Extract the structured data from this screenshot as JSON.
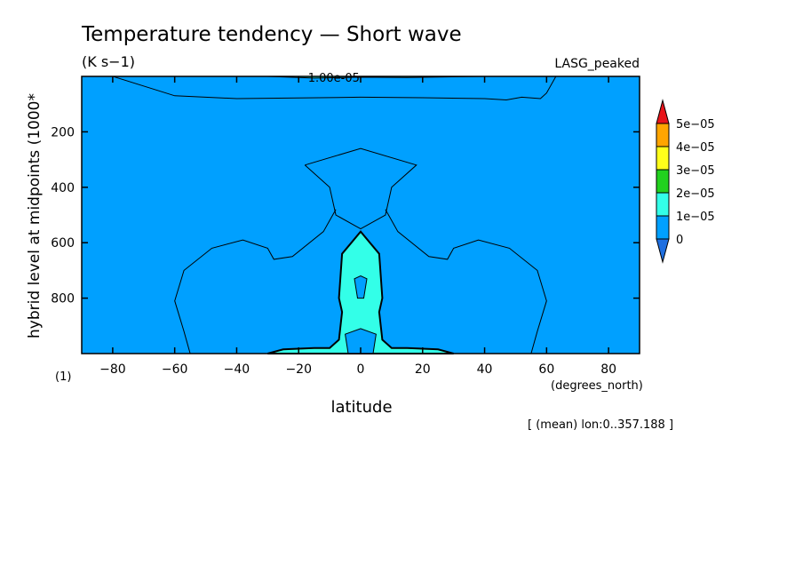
{
  "chart_data": {
    "type": "contour",
    "title": "Temperature tendency — Short wave",
    "units": "(K s−1)",
    "dataset": "LASG_peaked",
    "xlabel": "latitude",
    "xunits": "(degrees_north)",
    "ylabel": "hybrid level at midpoints (1000*",
    "yscale_note": "(1)",
    "footnote": "[ (mean) lon:0..357.188 ]",
    "xlim": [
      -90,
      90
    ],
    "ylim": [
      0,
      1000
    ],
    "y_reversed": true,
    "x_ticks": [
      -80,
      -60,
      -40,
      -20,
      0,
      20,
      40,
      60,
      80
    ],
    "x_tick_labels": [
      "−80",
      "−60",
      "−40",
      "−20",
      "0",
      "20",
      "40",
      "60",
      "80"
    ],
    "y_ticks": [
      200,
      400,
      600,
      800
    ],
    "y_tick_labels": [
      "200",
      "400",
      "600",
      "800"
    ],
    "contour_labels": [
      {
        "text": "1.00e-05"
      }
    ],
    "colorbar": {
      "levels": [
        "0",
        "1e−05",
        "2e−05",
        "3e−05",
        "4e−05",
        "5e−05"
      ],
      "colors": [
        "#1f6fe0",
        "#00a0ff",
        "#33ffe8",
        "#22d11e",
        "#ffff1a",
        "#ffa500",
        "#e8141a"
      ]
    },
    "filled_regions": [
      {
        "level": "1e-05 to 2e-05",
        "color": "#33ffe8",
        "points": [
          [
            -30,
            1000
          ],
          [
            -25,
            985
          ],
          [
            -15,
            980
          ],
          [
            -10,
            980
          ],
          [
            -7,
            950
          ],
          [
            -6,
            850
          ],
          [
            -7,
            800
          ],
          [
            -6,
            640
          ],
          [
            0,
            560
          ],
          [
            6,
            640
          ],
          [
            7,
            800
          ],
          [
            6,
            850
          ],
          [
            7,
            950
          ],
          [
            10,
            980
          ],
          [
            15,
            980
          ],
          [
            25,
            985
          ],
          [
            30,
            1000
          ]
        ]
      },
      {
        "level": "0 to 1e-05",
        "color": "#00a0ff",
        "points": [
          [
            -4,
            1000
          ],
          [
            -5,
            930
          ],
          [
            0,
            910
          ],
          [
            5,
            930
          ],
          [
            4,
            1000
          ]
        ]
      },
      {
        "level": "0 to 1e-05",
        "color": "#00a0ff",
        "points": [
          [
            -1,
            800
          ],
          [
            -2,
            730
          ],
          [
            0,
            720
          ],
          [
            2,
            730
          ],
          [
            1,
            800
          ]
        ]
      },
      {
        "level": "1e-05 to 2e-05",
        "color": "#33ffe8",
        "points": [
          [
            -30,
            0
          ],
          [
            -15,
            6
          ],
          [
            0,
            3
          ],
          [
            15,
            4
          ],
          [
            40,
            0
          ]
        ]
      }
    ]
  }
}
